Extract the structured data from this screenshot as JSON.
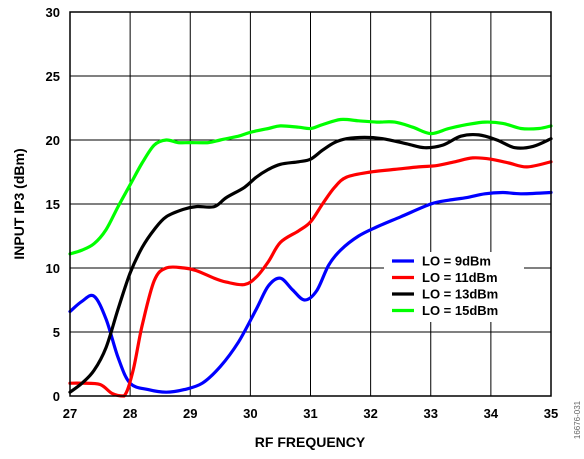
{
  "chart_data": {
    "type": "line",
    "title": "",
    "xlabel": "RF FREQUENCY",
    "ylabel": "INPUT IP3 (dBm)",
    "xlim": [
      27,
      35
    ],
    "ylim": [
      0,
      30
    ],
    "x_ticks": [
      27,
      28,
      29,
      30,
      31,
      32,
      33,
      34,
      35
    ],
    "y_ticks": [
      0,
      5,
      10,
      15,
      20,
      25,
      30
    ],
    "grid": true,
    "legend_position": "center-right",
    "figure_id": "16676-031",
    "series": [
      {
        "name": "LO = 9dBm",
        "color": "#0000ff",
        "x": [
          27.0,
          27.2,
          27.4,
          27.6,
          27.8,
          28.0,
          28.3,
          28.6,
          28.9,
          29.2,
          29.5,
          29.8,
          30.1,
          30.3,
          30.5,
          30.7,
          30.9,
          31.1,
          31.3,
          31.5,
          31.8,
          32.1,
          32.5,
          33.0,
          33.3,
          33.6,
          33.9,
          34.2,
          34.5,
          35.0
        ],
        "y": [
          6.6,
          7.4,
          7.8,
          6.0,
          3.0,
          1.0,
          0.5,
          0.3,
          0.5,
          1.0,
          2.3,
          4.2,
          6.8,
          8.6,
          9.2,
          8.3,
          7.5,
          8.2,
          10.2,
          11.4,
          12.5,
          13.2,
          14.0,
          15.0,
          15.3,
          15.5,
          15.8,
          15.9,
          15.8,
          15.9
        ]
      },
      {
        "name": "LO = 11dBm",
        "color": "#ff0000",
        "x": [
          27.0,
          27.2,
          27.5,
          27.7,
          27.9,
          28.05,
          28.2,
          28.4,
          28.6,
          28.9,
          29.1,
          29.4,
          29.6,
          29.9,
          30.1,
          30.3,
          30.5,
          30.8,
          31.0,
          31.2,
          31.4,
          31.6,
          32.0,
          32.4,
          32.8,
          33.1,
          33.4,
          33.7,
          34.0,
          34.3,
          34.6,
          35.0
        ],
        "y": [
          1.0,
          1.0,
          0.9,
          0.2,
          0.0,
          2.0,
          5.5,
          9.0,
          10.0,
          10.0,
          9.8,
          9.2,
          8.9,
          8.7,
          9.3,
          10.5,
          12.0,
          12.9,
          13.6,
          15.0,
          16.3,
          17.1,
          17.5,
          17.7,
          17.9,
          18.0,
          18.3,
          18.6,
          18.5,
          18.2,
          17.9,
          18.3
        ]
      },
      {
        "name": "LO = 13dBm",
        "color": "#000000",
        "x": [
          27.0,
          27.2,
          27.4,
          27.6,
          27.8,
          28.0,
          28.2,
          28.4,
          28.6,
          28.9,
          29.1,
          29.4,
          29.6,
          29.9,
          30.1,
          30.3,
          30.5,
          30.8,
          31.0,
          31.2,
          31.4,
          31.6,
          31.9,
          32.2,
          32.6,
          32.9,
          33.2,
          33.5,
          33.8,
          34.1,
          34.4,
          34.7,
          35.0
        ],
        "y": [
          0.3,
          1.0,
          2.0,
          3.8,
          6.8,
          9.6,
          11.6,
          13.0,
          14.0,
          14.6,
          14.8,
          14.8,
          15.5,
          16.3,
          17.1,
          17.7,
          18.1,
          18.3,
          18.5,
          19.2,
          19.8,
          20.1,
          20.2,
          20.1,
          19.7,
          19.4,
          19.6,
          20.3,
          20.4,
          20.0,
          19.4,
          19.5,
          20.1
        ]
      },
      {
        "name": "LO = 15dBm",
        "color": "#00ff00",
        "x": [
          27.0,
          27.2,
          27.4,
          27.6,
          27.8,
          28.0,
          28.2,
          28.4,
          28.6,
          28.8,
          29.0,
          29.3,
          29.5,
          29.8,
          30.0,
          30.3,
          30.5,
          30.8,
          31.0,
          31.2,
          31.5,
          31.8,
          32.1,
          32.4,
          32.7,
          33.0,
          33.3,
          33.6,
          33.9,
          34.2,
          34.5,
          34.8,
          35.0
        ],
        "y": [
          11.1,
          11.4,
          11.9,
          13.0,
          14.8,
          16.5,
          18.2,
          19.6,
          20.0,
          19.8,
          19.8,
          19.8,
          20.0,
          20.3,
          20.6,
          20.9,
          21.1,
          21.0,
          20.9,
          21.2,
          21.6,
          21.5,
          21.4,
          21.4,
          21.0,
          20.5,
          20.9,
          21.2,
          21.4,
          21.3,
          20.9,
          20.9,
          21.1
        ]
      }
    ]
  }
}
